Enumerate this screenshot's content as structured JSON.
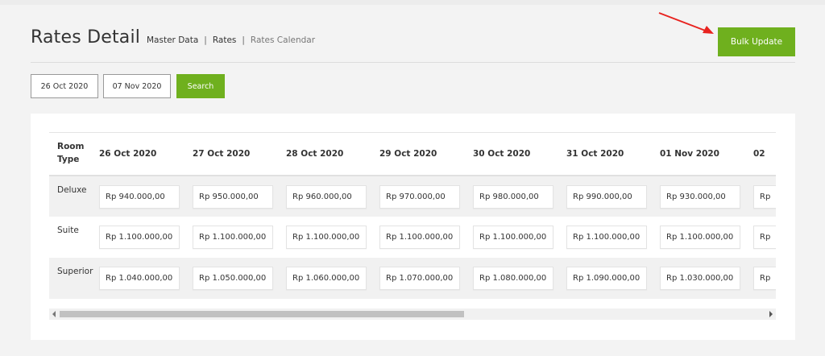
{
  "header": {
    "title": "Rates Detail",
    "breadcrumb": [
      "Master Data",
      "Rates",
      "Rates Calendar"
    ],
    "bulk_update_label": "Bulk Update"
  },
  "filters": {
    "date_from": "26 Oct 2020",
    "date_to": "07 Nov 2020",
    "search_label": "Search"
  },
  "table": {
    "room_type_header": [
      "Room",
      "Type"
    ],
    "columns": [
      "26 Oct 2020",
      "27 Oct 2020",
      "28 Oct 2020",
      "29 Oct 2020",
      "30 Oct 2020",
      "31 Oct 2020",
      "01 Nov 2020",
      "02"
    ],
    "rows": [
      {
        "room": "Deluxe",
        "rates": [
          "Rp 940.000,00",
          "Rp 950.000,00",
          "Rp 960.000,00",
          "Rp 970.000,00",
          "Rp 980.000,00",
          "Rp 990.000,00",
          "Rp 930.000,00",
          "Rp"
        ]
      },
      {
        "room": "Suite",
        "rates": [
          "Rp 1.100.000,00",
          "Rp 1.100.000,00",
          "Rp 1.100.000,00",
          "Rp 1.100.000,00",
          "Rp 1.100.000,00",
          "Rp 1.100.000,00",
          "Rp 1.100.000,00",
          "Rp"
        ]
      },
      {
        "room": "Superior",
        "rates": [
          "Rp 1.040.000,00",
          "Rp 1.050.000,00",
          "Rp 1.060.000,00",
          "Rp 1.070.000,00",
          "Rp 1.080.000,00",
          "Rp 1.090.000,00",
          "Rp 1.030.000,00",
          "Rp"
        ]
      }
    ]
  },
  "colors": {
    "accent": "#6fb01e",
    "annotation_arrow": "#e8231f"
  },
  "icons": [
    "arrow-annotation",
    "scroll-left-icon",
    "scroll-right-icon"
  ]
}
